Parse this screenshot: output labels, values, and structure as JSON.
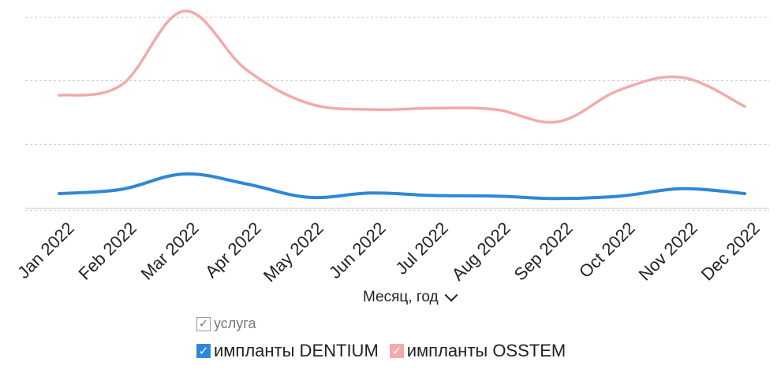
{
  "chart_data": {
    "type": "line",
    "categories": [
      "Jan 2022",
      "Feb 2022",
      "Mar 2022",
      "Apr 2022",
      "May 2022",
      "Jun 2022",
      "Jul 2022",
      "Aug 2022",
      "Sep 2022",
      "Oct 2022",
      "Nov 2022",
      "Dec 2022"
    ],
    "series": [
      {
        "name": "импланты DENTIUM",
        "color": "#2f87d8",
        "values": [
          23,
          30,
          55,
          39,
          17,
          24,
          20,
          19,
          15,
          19,
          31,
          23
        ]
      },
      {
        "name": "импланты OSSTEM",
        "color": "#f2aaab",
        "values": [
          183,
          200,
          320,
          225,
          170,
          160,
          162,
          160,
          140,
          192,
          212,
          165
        ]
      }
    ],
    "ylim": [
      0,
      310
    ],
    "grid": true,
    "xlabel": "Месяц, год",
    "legend_position": "bottom"
  },
  "legend": {
    "group_label": "услуга",
    "check_mark": "✓"
  }
}
